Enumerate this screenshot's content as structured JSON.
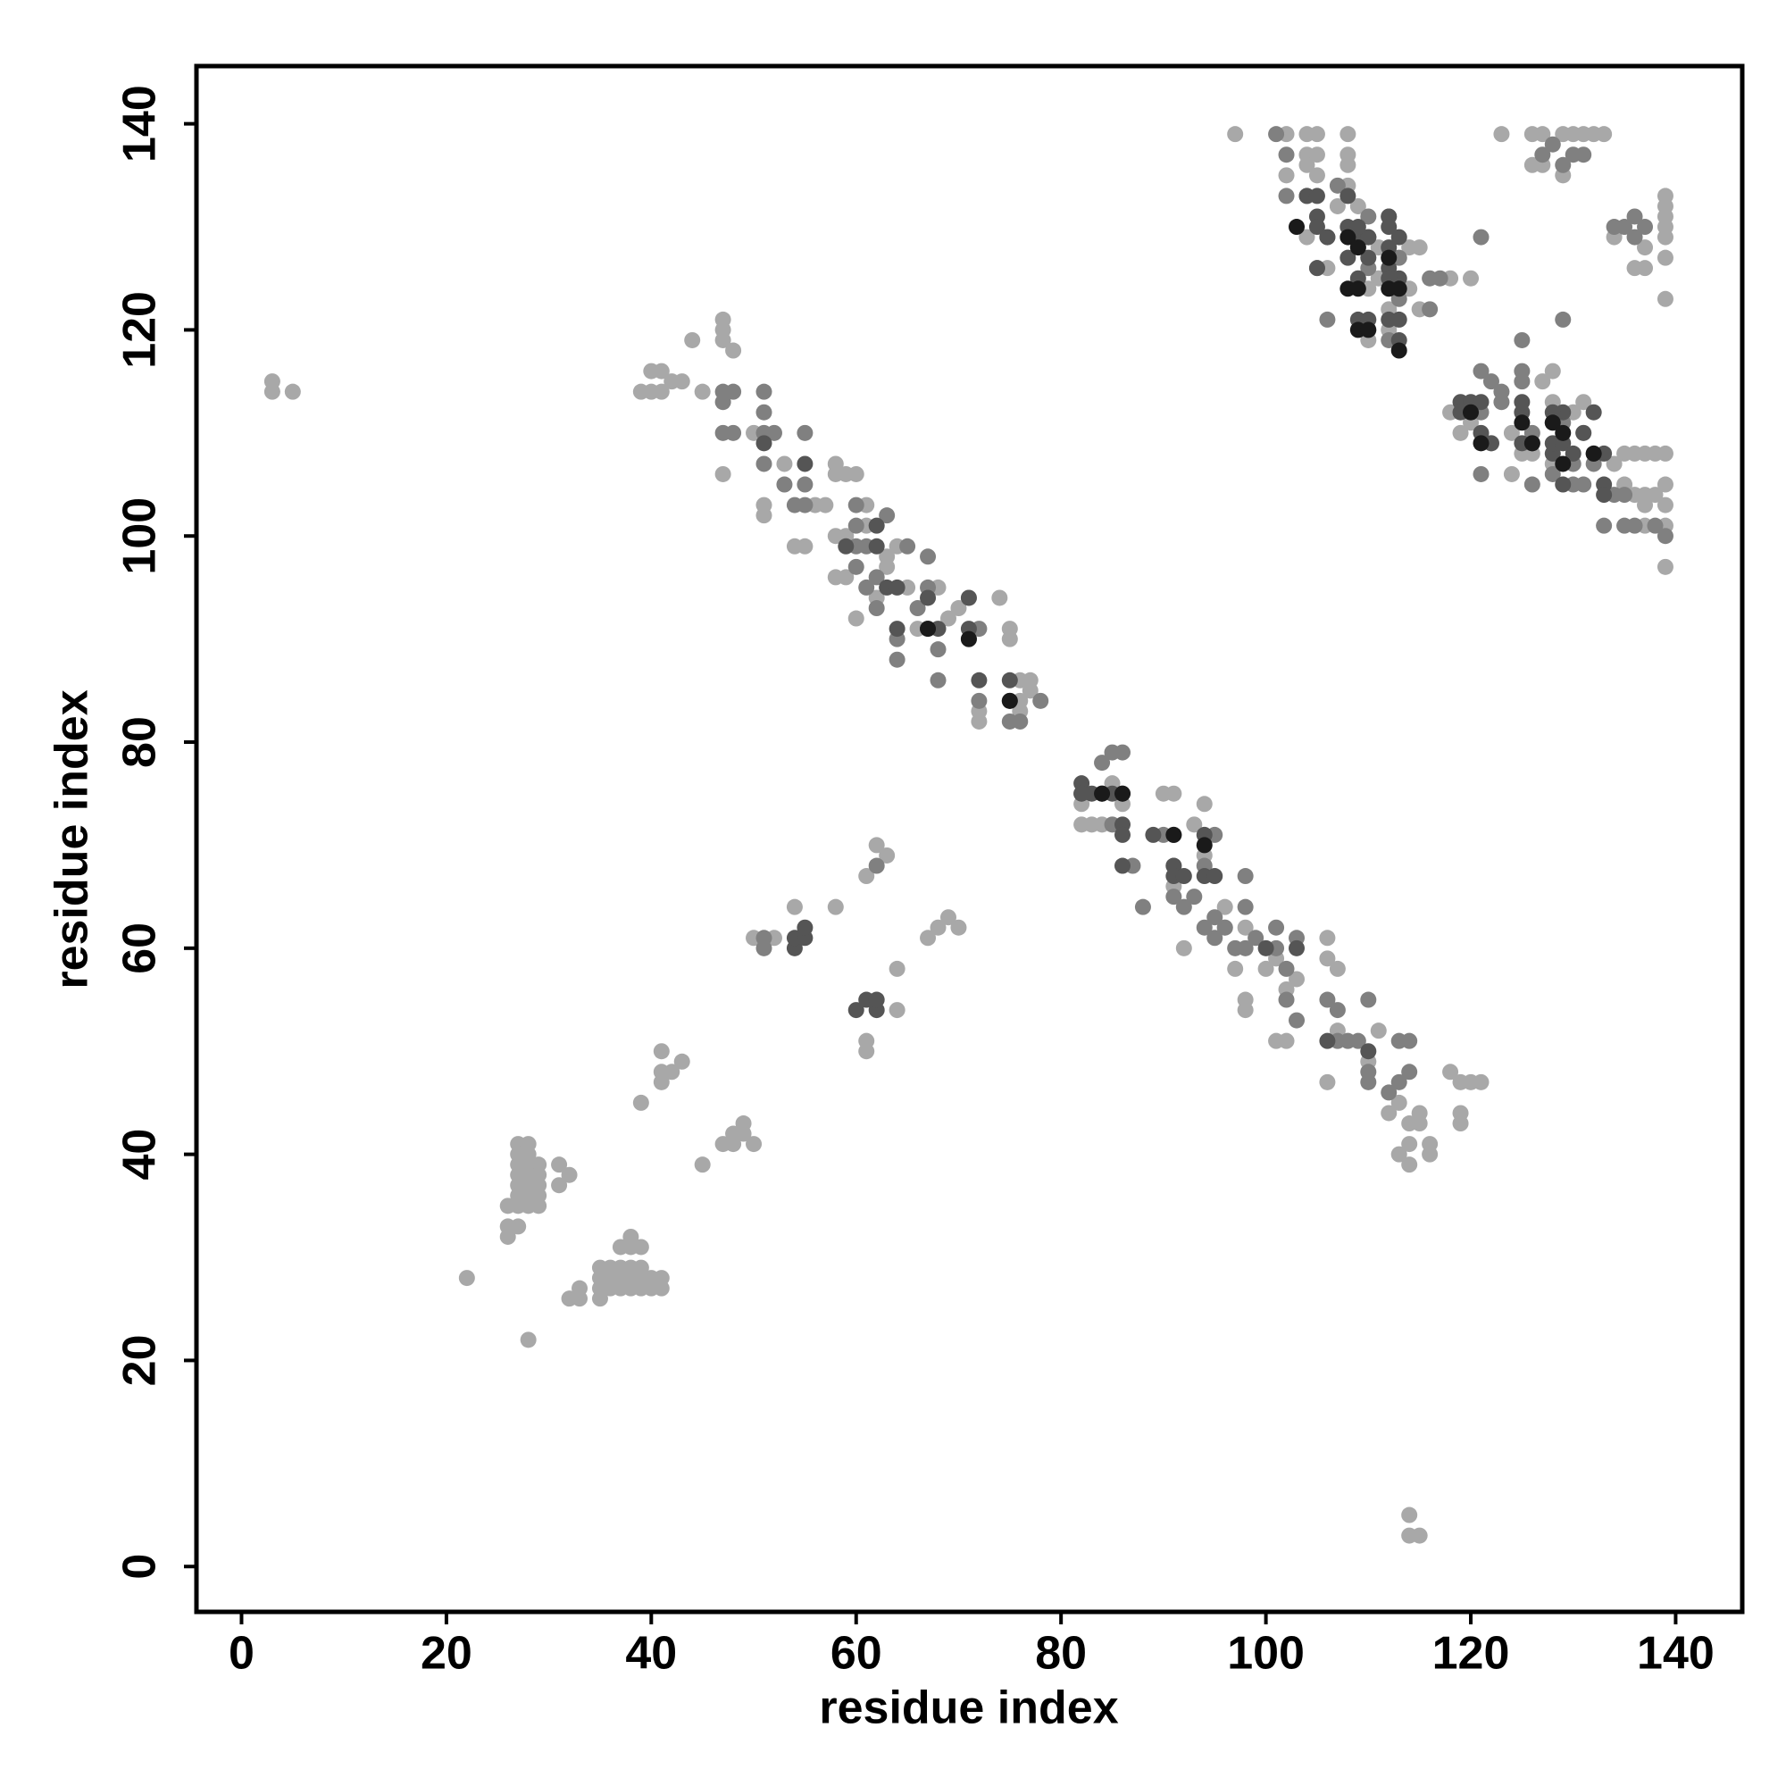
{
  "chart_data": {
    "type": "scatter",
    "xlabel": "residue index",
    "ylabel": "residue index",
    "xlim": [
      -4.4,
      146.5
    ],
    "ylim": [
      -4.4,
      145.6
    ],
    "xticks": [
      0,
      20,
      40,
      60,
      80,
      100,
      120,
      140
    ],
    "yticks": [
      0,
      20,
      40,
      60,
      80,
      100,
      120,
      140
    ],
    "series": [
      {
        "color": "#a8a8a8",
        "x": [
          3,
          3,
          5,
          22,
          28,
          26,
          26,
          26,
          27,
          27,
          28,
          27,
          28,
          27,
          28,
          29,
          27,
          28,
          29,
          27,
          28,
          29,
          27,
          28,
          29,
          27,
          28,
          29,
          31,
          31,
          32,
          32,
          33,
          33,
          35,
          35,
          36,
          37,
          38,
          39,
          35,
          36,
          37,
          38,
          39,
          40,
          41,
          35,
          36,
          37,
          38,
          39,
          37,
          38,
          39,
          38,
          40,
          41,
          39,
          41,
          41,
          42,
          41,
          43,
          45,
          47,
          48,
          48,
          49,
          49,
          50,
          50,
          52,
          54,
          58,
          61,
          62,
          63,
          61,
          61,
          64,
          64,
          67,
          68,
          69,
          70,
          114,
          114,
          115,
          39,
          40,
          41,
          40,
          41,
          42,
          43,
          44,
          45,
          47,
          47,
          47,
          48,
          47,
          50,
          51,
          51,
          53,
          54,
          55,
          56,
          57,
          58,
          58,
          59,
          60,
          58,
          59,
          60,
          58,
          59,
          61,
          61,
          62,
          63,
          63,
          64,
          65,
          66,
          72,
          72,
          76,
          76,
          77,
          76,
          77,
          75,
          75,
          74,
          69,
          70,
          68,
          71,
          82,
          83,
          82,
          84,
          85,
          86,
          84,
          90,
          91,
          93,
          94,
          91,
          94,
          92,
          96,
          96,
          97,
          98,
          98,
          98,
          100,
          101,
          101,
          102,
          102,
          103,
          106,
          106,
          107,
          107,
          106,
          110,
          113,
          114,
          114,
          115,
          115,
          116,
          116,
          114,
          118,
          119,
          120,
          121,
          119,
          119,
          112,
          113,
          111,
          97,
          102,
          104,
          105,
          108,
          104,
          105,
          108,
          108,
          104,
          108,
          102,
          105,
          104,
          106,
          110,
          111,
          112,
          112,
          114,
          115,
          114,
          115,
          118,
          120,
          123,
          126,
          127,
          129,
          130,
          131,
          132,
          133,
          126,
          127,
          129,
          134,
          137,
          137,
          136,
          139,
          139,
          139,
          139,
          139,
          139,
          139,
          139,
          138,
          137,
          136,
          135,
          139,
          139,
          139,
          135,
          136,
          137,
          138,
          137,
          139,
          118,
          119,
          120,
          122,
          124,
          127,
          128,
          126,
          125,
          128,
          124,
          134,
          137,
          128,
          130,
          131,
          131,
          110,
          111,
          109,
          107
        ],
        "values": [
          115,
          114,
          114,
          28,
          22,
          35,
          33,
          32,
          33,
          41,
          41,
          40,
          40,
          39,
          39,
          39,
          38,
          38,
          38,
          37,
          37,
          37,
          36,
          36,
          36,
          35,
          35,
          35,
          39,
          37,
          38,
          26,
          26,
          27,
          26,
          27,
          27,
          27,
          27,
          27,
          28,
          28,
          28,
          28,
          28,
          28,
          28,
          29,
          29,
          29,
          29,
          29,
          31,
          31,
          31,
          32,
          27,
          27,
          45,
          47,
          48,
          48,
          50,
          49,
          39,
          41,
          41,
          42,
          42,
          43,
          41,
          61,
          61,
          64,
          64,
          67,
          70,
          69,
          51,
          50,
          54,
          58,
          61,
          62,
          63,
          62,
          5,
          3,
          3,
          114,
          116,
          116,
          114,
          114,
          115,
          115,
          119,
          114,
          121,
          120,
          119,
          118,
          106,
          110,
          103,
          102,
          107,
          99,
          99,
          103,
          103,
          107,
          106,
          106,
          106,
          96,
          96,
          92,
          100,
          100,
          103,
          101,
          94,
          97,
          98,
          99,
          95,
          91,
          82,
          83,
          83,
          84,
          85,
          86,
          86,
          91,
          90,
          94,
          92,
          93,
          95,
          94,
          72,
          72,
          74,
          72,
          76,
          74,
          75,
          75,
          75,
          72,
          74,
          66,
          69,
          60,
          64,
          62,
          58,
          62,
          55,
          54,
          58,
          59,
          51,
          51,
          56,
          57,
          61,
          59,
          58,
          52,
          47,
          49,
          40,
          41,
          43,
          43,
          44,
          40,
          41,
          39,
          48,
          47,
          47,
          47,
          44,
          43,
          44,
          45,
          52,
          139,
          139,
          139,
          139,
          139,
          137,
          137,
          137,
          136,
          136,
          134,
          135,
          135,
          129,
          126,
          119,
          125,
          122,
          120,
          128,
          128,
          124,
          122,
          125,
          125,
          139,
          139,
          139,
          139,
          139,
          139,
          139,
          139,
          136,
          136,
          135,
          129,
          128,
          126,
          126,
          133,
          132,
          131,
          130,
          129,
          127,
          123,
          108,
          108,
          108,
          108,
          108,
          105,
          103,
          97,
          105,
          104,
          104,
          104,
          103,
          101,
          112,
          110,
          111,
          109,
          110,
          115,
          116,
          108,
          108,
          107,
          106,
          107,
          101,
          113,
          112,
          110,
          113,
          124,
          128,
          132,
          132
        ]
      },
      {
        "color": "#808080",
        "x": [
          51,
          51,
          62,
          47,
          47,
          48,
          47,
          48,
          51,
          51,
          51,
          51,
          52,
          53,
          54,
          55,
          55,
          55,
          60,
          60,
          60,
          61,
          62,
          60,
          62,
          64,
          64,
          66,
          67,
          68,
          68,
          71,
          72,
          72,
          75,
          76,
          78,
          67,
          63,
          65,
          61,
          82,
          84,
          85,
          86,
          85,
          87,
          88,
          90,
          91,
          91,
          92,
          93,
          94,
          95,
          95,
          96,
          97,
          98,
          98,
          99,
          101,
          101,
          102,
          102,
          103,
          103,
          106,
          107,
          107,
          108,
          109,
          110,
          110,
          110,
          113,
          114,
          113,
          114,
          112,
          98,
          94,
          95,
          101,
          102,
          102,
          104,
          107,
          106,
          105,
          106,
          109,
          110,
          110,
          112,
          113,
          113,
          112,
          116,
          116,
          117,
          121,
          127,
          128,
          130,
          131,
          129,
          134,
          135,
          136,
          137,
          136,
          121,
          121,
          121,
          122,
          123,
          123,
          125,
          125,
          125,
          126,
          126,
          129,
          129,
          128,
          128,
          130,
          130,
          131,
          132,
          133,
          135,
          136,
          134,
          135,
          138,
          139
        ],
        "values": [
          60,
          61,
          68,
          114,
          113,
          114,
          110,
          110,
          114,
          112,
          110,
          107,
          110,
          105,
          103,
          103,
          105,
          110,
          103,
          101,
          99,
          99,
          96,
          97,
          93,
          90,
          88,
          93,
          95,
          89,
          86,
          90,
          84,
          91,
          82,
          82,
          84,
          98,
          102,
          99,
          95,
          75,
          78,
          79,
          79,
          72,
          68,
          64,
          71,
          68,
          65,
          64,
          65,
          62,
          61,
          63,
          62,
          60,
          64,
          60,
          61,
          62,
          60,
          58,
          55,
          53,
          61,
          55,
          54,
          51,
          51,
          51,
          48,
          47,
          55,
          51,
          51,
          47,
          48,
          46,
          67,
          68,
          71,
          139,
          137,
          133,
          133,
          134,
          129,
          126,
          121,
          128,
          126,
          131,
          131,
          127,
          123,
          119,
          122,
          125,
          125,
          129,
          137,
          138,
          137,
          137,
          136,
          130,
          130,
          131,
          130,
          129,
          116,
          112,
          106,
          115,
          114,
          113,
          119,
          116,
          115,
          110,
          105,
          111,
          121,
          106,
          111,
          105,
          107,
          105,
          107,
          101,
          101,
          101,
          104,
          104,
          101,
          100
        ]
      },
      {
        "color": "#555555",
        "x": [
          54,
          54,
          55,
          55,
          60,
          61,
          62,
          62,
          51,
          55,
          59,
          62,
          63,
          64,
          64,
          67,
          67,
          68,
          71,
          71,
          72,
          75,
          75,
          62,
          82,
          82,
          83,
          84,
          85,
          86,
          86,
          86,
          86,
          89,
          91,
          91,
          91,
          92,
          94,
          95,
          94,
          100,
          103,
          106,
          110,
          104,
          105,
          105,
          106,
          108,
          108,
          109,
          108,
          109,
          110,
          110,
          112,
          112,
          112,
          113,
          109,
          110,
          112,
          113,
          113,
          113,
          112,
          105,
          119,
          120,
          121,
          121,
          122,
          125,
          125,
          125,
          126,
          128,
          128,
          129,
          128,
          129,
          129,
          132,
          132,
          133,
          133,
          133,
          131,
          130,
          110,
          105,
          119,
          112,
          109
        ],
        "values": [
          60,
          61,
          61,
          62,
          54,
          55,
          54,
          55,
          109,
          107,
          99,
          99,
          95,
          91,
          95,
          94,
          91,
          91,
          91,
          94,
          86,
          84,
          86,
          101,
          76,
          75,
          75,
          75,
          75,
          75,
          72,
          71,
          68,
          71,
          68,
          67,
          71,
          67,
          67,
          67,
          71,
          60,
          60,
          51,
          50,
          133,
          131,
          130,
          129,
          133,
          130,
          129,
          127,
          125,
          129,
          127,
          126,
          128,
          131,
          129,
          121,
          121,
          121,
          121,
          119,
          125,
          125,
          126,
          113,
          113,
          113,
          110,
          109,
          112,
          113,
          109,
          109,
          108,
          109,
          112,
          112,
          109,
          105,
          112,
          108,
          108,
          105,
          104,
          110,
          108,
          129,
          133,
          112,
          130,
          130
        ]
      },
      {
        "color": "#1a1a1a",
        "x": [
          108,
          109,
          108,
          109,
          112,
          113,
          112,
          109,
          110,
          113,
          120,
          121,
          125,
          126,
          128,
          129,
          129,
          132,
          103,
          67,
          71,
          75,
          91,
          94,
          86,
          84
        ],
        "values": [
          129,
          128,
          124,
          124,
          124,
          124,
          127,
          120,
          120,
          118,
          112,
          109,
          111,
          109,
          111,
          110,
          107,
          108,
          130,
          91,
          90,
          84,
          71,
          70,
          75,
          75
        ]
      }
    ]
  }
}
